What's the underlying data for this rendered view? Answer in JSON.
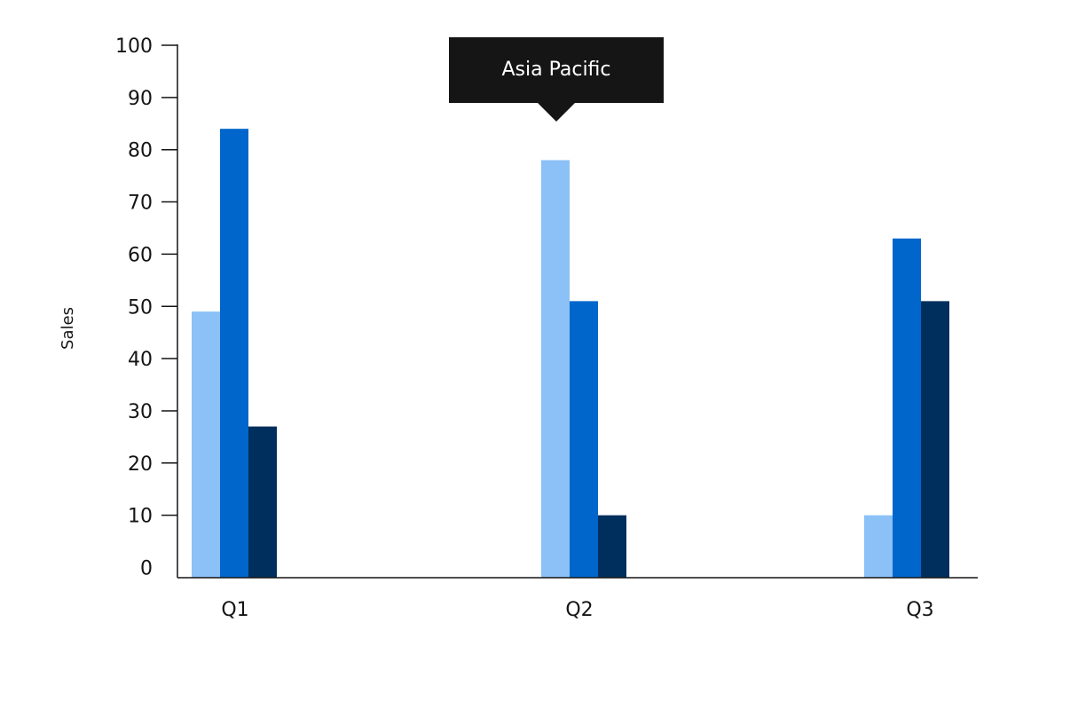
{
  "chart_data": {
    "type": "bar",
    "title": "",
    "xlabel": "",
    "ylabel": "Sales",
    "ylim": [
      0,
      100
    ],
    "yticks": [
      0,
      10,
      20,
      30,
      40,
      50,
      60,
      70,
      80,
      90,
      100
    ],
    "categories": [
      "Q1",
      "Q2",
      "Q3"
    ],
    "series": [
      {
        "color": "#8bc1f7",
        "values": [
          49,
          78,
          10
        ]
      },
      {
        "color": "#0066cc",
        "values": [
          84,
          51,
          63
        ]
      },
      {
        "color": "#002f5d",
        "values": [
          27,
          10,
          51
        ]
      }
    ],
    "grid": false,
    "legend": "none"
  },
  "tooltip": {
    "text": "Asia Pacific",
    "category_index": 1,
    "series_index": 0
  }
}
